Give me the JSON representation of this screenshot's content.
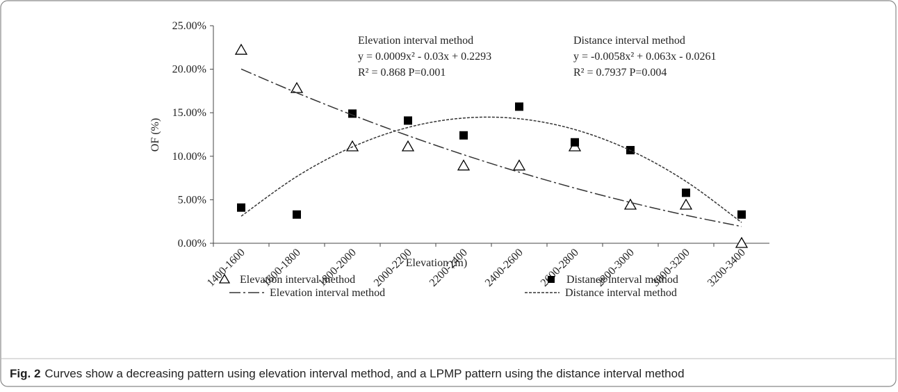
{
  "chart_data": {
    "type": "line",
    "x_label": "Elevation (m)",
    "y_label": "OF (%)",
    "categories": [
      "1400-1600",
      "1600-1800",
      "1800-2000",
      "2000-2200",
      "2200-2400",
      "2400-2600",
      "2600-2800",
      "2800-3000",
      "3000-3200",
      "3200-3400"
    ],
    "ylim": [
      0,
      25
    ],
    "yticks": [
      {
        "value": 0,
        "label": "0.00%"
      },
      {
        "value": 5,
        "label": "5.00%"
      },
      {
        "value": 10,
        "label": "10.00%"
      },
      {
        "value": 15,
        "label": "15.00%"
      },
      {
        "value": 20,
        "label": "20.00%"
      },
      {
        "value": 25,
        "label": "25.00%"
      }
    ],
    "series": [
      {
        "name": "Elevation interval method",
        "style": "triangle",
        "color": "#000000",
        "values": [
          22.2,
          17.8,
          11.1,
          11.1,
          8.9,
          8.9,
          11.1,
          4.4,
          4.4,
          0
        ]
      },
      {
        "name": "Distance interval method",
        "style": "square",
        "color": "#000000",
        "values": [
          4.1,
          3.3,
          14.9,
          14.1,
          12.4,
          15.7,
          11.6,
          10.7,
          5.8,
          3.3
        ]
      },
      {
        "name": "Elevation interval method",
        "style": "dash-dot",
        "color": "#333333",
        "values": [
          20.02,
          17.29,
          14.74,
          12.37,
          10.18,
          8.17,
          6.34,
          4.69,
          3.22,
          1.93
        ]
      },
      {
        "name": "Distance interval method",
        "style": "dotted",
        "color": "#333333",
        "values": [
          3.11,
          7.67,
          11.07,
          13.31,
          14.39,
          14.31,
          13.07,
          10.67,
          7.11,
          2.39
        ]
      }
    ],
    "annotations": [
      {
        "title": "Elevation interval method",
        "equation": "y = 0.0009x² - 0.03x + 0.2293",
        "stats": "R² = 0.868  P=0.001"
      },
      {
        "title": "Distance interval method",
        "equation": "y = -0.0058x² + 0.063x - 0.0261",
        "stats": "R² = 0.7937  P=0.004"
      }
    ]
  },
  "caption": {
    "label": "Fig. 2",
    "text": "Curves show a decreasing pattern using elevation interval method, and a LPMP pattern using the distance interval method"
  }
}
